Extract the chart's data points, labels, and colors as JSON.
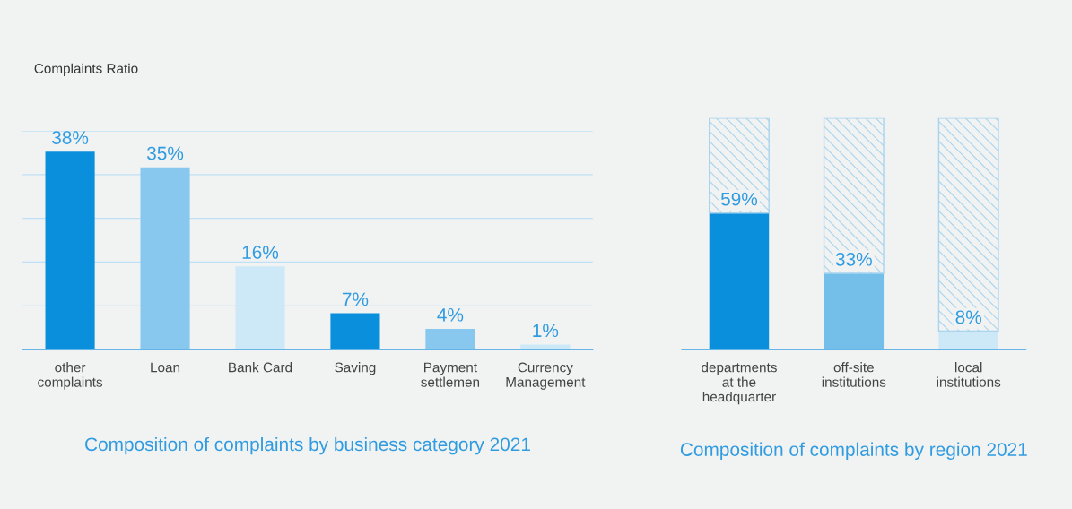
{
  "chart_data": [
    {
      "type": "bar",
      "title": "Composition of complaints by business category 2021",
      "ylabel": "Complaints Ratio",
      "categories": [
        "other\ncomplaints",
        "Loan",
        "Bank Card",
        "Saving",
        "Payment\nsettlemen",
        "Currency\nManagement"
      ],
      "values": [
        38,
        35,
        16,
        7,
        4,
        1
      ],
      "colors": [
        "#0a8fdc",
        "#88c8ee",
        "#cde8f7",
        "#0a8fdc",
        "#88c8ee",
        "#cde8f7"
      ],
      "value_labels": [
        "38%",
        "35%",
        "16%",
        "7%",
        "4%",
        "1%"
      ],
      "ylim": [
        0,
        42
      ],
      "yticks": [
        {
          "value": 8.4,
          "label": null
        },
        {
          "value": 16.8,
          "label": null
        },
        {
          "value": 25.2,
          "label": null
        },
        {
          "value": 33.6,
          "label": null
        },
        {
          "value": 42,
          "label": null
        }
      ],
      "grid": "y",
      "tick_labels": "x"
    },
    {
      "type": "bar",
      "title": "Composition of complaints by region 2021",
      "stacked": true,
      "categories": [
        "departments\nat the\nheadquarter",
        "off-site\ninstitutions",
        "local\ninstitutions"
      ],
      "series": [
        {
          "colors": [
            "#0a8fdc",
            "#74bfea",
            "#cde8f7"
          ],
          "values": [
            59,
            33,
            8
          ],
          "value_labels": [
            "59%",
            "33%",
            "8%"
          ]
        },
        {
          "color": "#a9d4ee",
          "values": [
            41,
            67,
            92
          ]
        }
      ],
      "ylim": [
        0,
        100
      ],
      "tick_labels": "x"
    }
  ]
}
